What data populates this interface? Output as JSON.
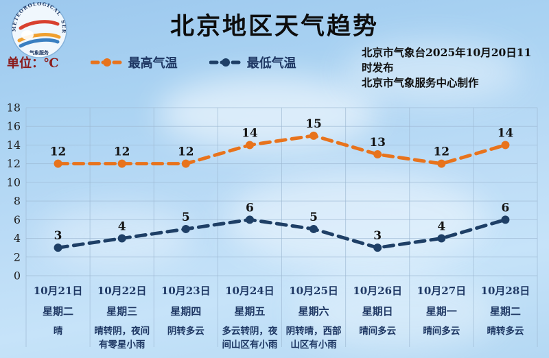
{
  "header": {
    "title": "北京地区天气趋势",
    "logo_bottom_text": "气象服务",
    "publisher_line1": "北京市气象台2025年10月20日11时发布",
    "publisher_line2": "北京市气象服务中心制作"
  },
  "legend": {
    "unit_label": "单位：℃",
    "max_label": "最高气温",
    "min_label": "最低气温"
  },
  "colors": {
    "max_line": "#e8731c",
    "min_line": "#1e3f66",
    "unit_text": "#8b1c1c",
    "day_label_text": "#1f3864",
    "grid": "#9db8d2"
  },
  "chart_data": {
    "type": "line",
    "title": "北京地区天气趋势",
    "ylabel": "℃",
    "ylim": [
      0,
      18
    ],
    "ytick_step": 2,
    "grid": true,
    "legend_position": "top-left",
    "categories": [
      "10月21日",
      "10月22日",
      "10月23日",
      "10月24日",
      "10月25日",
      "10月26日",
      "10月27日",
      "10月28日"
    ],
    "series": [
      {
        "name": "最高气温",
        "color": "#e8731c",
        "values": [
          12,
          12,
          12,
          14,
          15,
          13,
          12,
          14
        ]
      },
      {
        "name": "最低气温",
        "color": "#1e3f66",
        "values": [
          3,
          4,
          5,
          6,
          5,
          3,
          4,
          6
        ]
      }
    ],
    "days": [
      {
        "date": "10月21日",
        "weekday": "星期二",
        "weather": "晴"
      },
      {
        "date": "10月22日",
        "weekday": "星期三",
        "weather": "晴转阴，夜间有零星小雨"
      },
      {
        "date": "10月23日",
        "weekday": "星期四",
        "weather": "阴转多云"
      },
      {
        "date": "10月24日",
        "weekday": "星期五",
        "weather": "多云转阴，夜间山区有小雨"
      },
      {
        "date": "10月25日",
        "weekday": "星期六",
        "weather": "阴转晴，西部山区有小雨"
      },
      {
        "date": "10月26日",
        "weekday": "星期日",
        "weather": "晴间多云"
      },
      {
        "date": "10月27日",
        "weekday": "星期一",
        "weather": "晴间多云"
      },
      {
        "date": "10月28日",
        "weekday": "星期二",
        "weather": "晴转多云"
      }
    ]
  }
}
